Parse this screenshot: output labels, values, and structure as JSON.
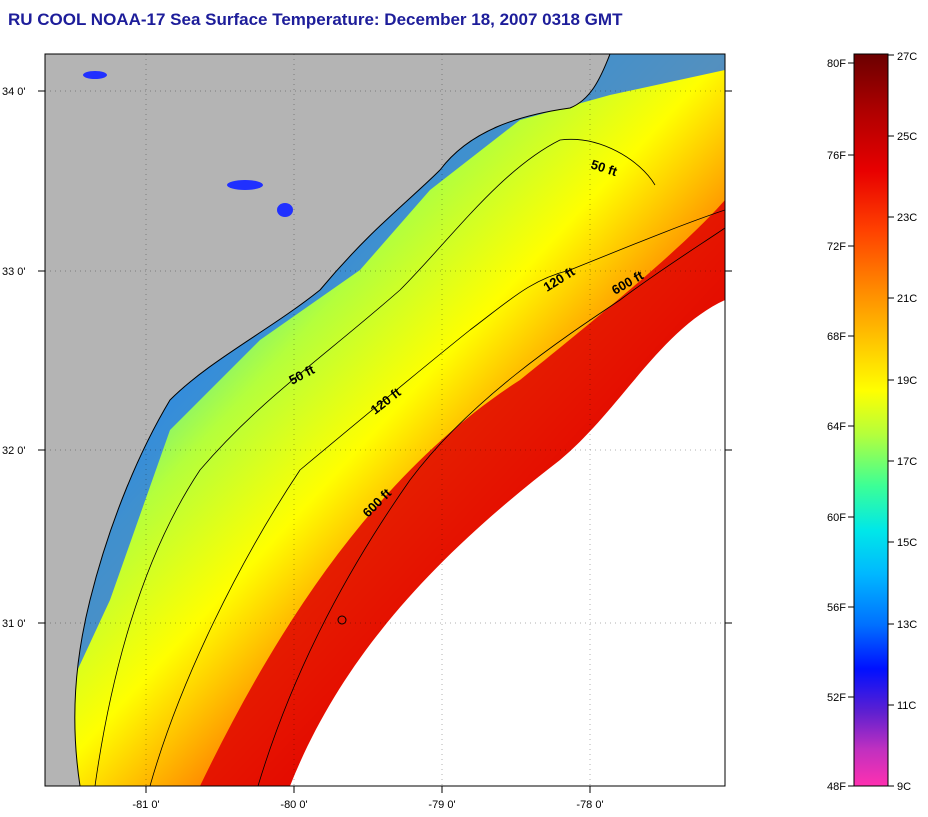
{
  "title": "RU COOL  NOAA-17  Sea Surface Temperature:  December 18, 2007 0318 GMT",
  "map": {
    "lat_labels": [
      "34 0'",
      "33 0'",
      "32 0'",
      "31 0'"
    ],
    "lon_labels": [
      "-81 0'",
      "-80 0'",
      "-79 0'",
      "-78 0'"
    ],
    "contours": [
      {
        "label": "50 ft"
      },
      {
        "label": "50 ft"
      },
      {
        "label": "120 ft"
      },
      {
        "label": "120 ft"
      },
      {
        "label": "600 ft"
      },
      {
        "label": "600 ft"
      }
    ]
  },
  "colorbar": {
    "fahrenheit": [
      "80F",
      "76F",
      "72F",
      "68F",
      "64F",
      "60F",
      "56F",
      "52F",
      "48F"
    ],
    "celsius": [
      "27C",
      "25C",
      "23C",
      "21C",
      "19C",
      "17C",
      "15C",
      "13C",
      "11C",
      "9C"
    ],
    "stops": [
      "#6b0000",
      "#b00000",
      "#e80000",
      "#ff4000",
      "#ff8800",
      "#ffcc00",
      "#ffff00",
      "#b4ff3c",
      "#3cff96",
      "#00e8e8",
      "#00b8ff",
      "#0070ff",
      "#0010ff",
      "#6020d0",
      "#c030c0",
      "#ff30b0"
    ]
  },
  "colors": {
    "land": "#b4b4b4",
    "cloud": "#ffffff",
    "title": "#1d1d9a"
  }
}
